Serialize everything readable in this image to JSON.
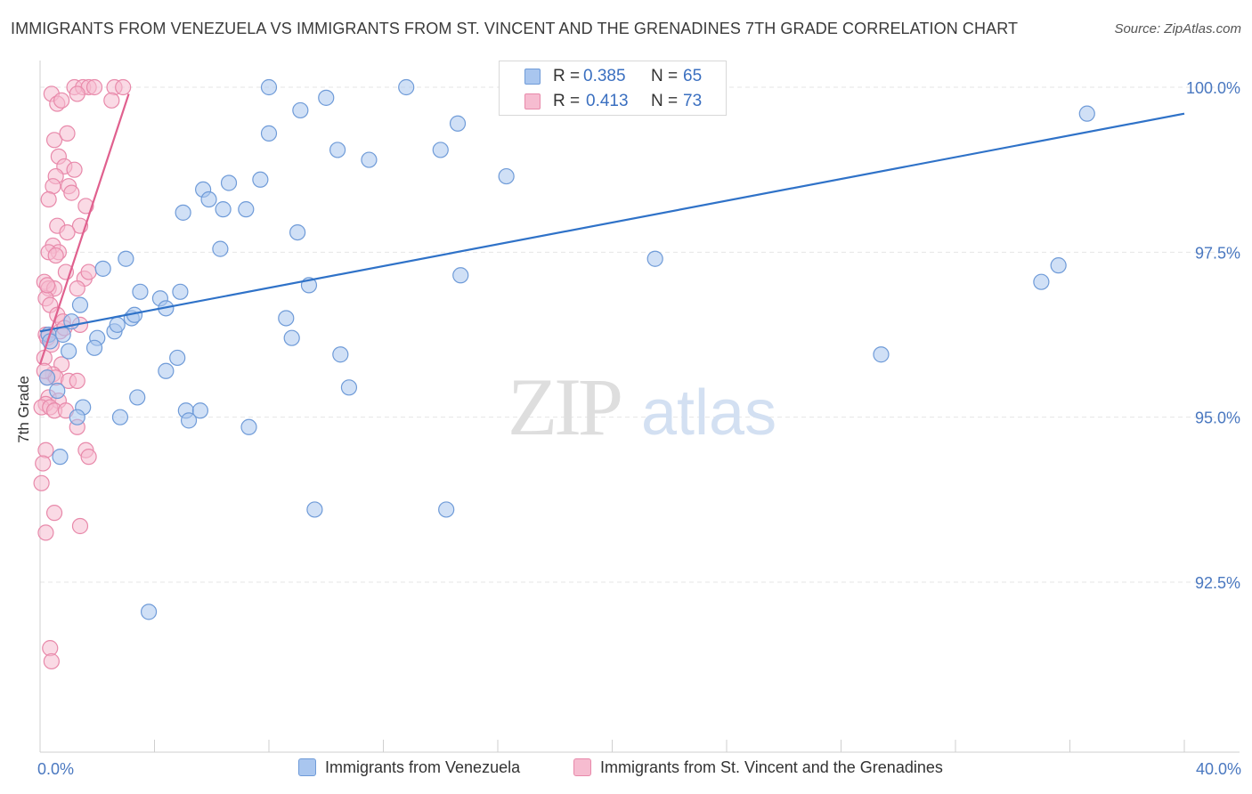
{
  "chart_data": {
    "type": "scatter",
    "title": "IMMIGRANTS FROM VENEZUELA VS IMMIGRANTS FROM ST. VINCENT AND THE GRENADINES 7TH GRADE CORRELATION CHART",
    "source": "Source: ZipAtlas.com",
    "xlabel": "",
    "ylabel": "7th Grade",
    "xlim": [
      0,
      40
    ],
    "ylim": [
      90.2,
      100.5
    ],
    "x_tick_labels": [
      "0.0%",
      "40.0%"
    ],
    "y_ticks": [
      92.5,
      95.0,
      97.5,
      100.0
    ],
    "y_tick_labels": [
      "92.5%",
      "95.0%",
      "97.5%",
      "100.0%"
    ],
    "watermark": {
      "zip": "ZIP",
      "atlas": "atlas"
    },
    "legend": {
      "r_label": "R =",
      "n_label": "N =",
      "entries": [
        {
          "name": "Immigrants from Venezuela",
          "r": "0.385",
          "n": "65"
        },
        {
          "name": "Immigrants from St. Vincent and the Grenadines",
          "r": "0.413",
          "n": "73"
        }
      ]
    },
    "colors": {
      "blue_fill": "#a9c6ef",
      "blue_stroke": "#6f9bd8",
      "blue_line": "#2f72c8",
      "pink_fill": "#f6bcd0",
      "pink_stroke": "#e889aa",
      "pink_line": "#e0608e",
      "grid": "#e6e6e6"
    },
    "series": [
      {
        "name": "Immigrants from Venezuela",
        "trend": [
          [
            0,
            96.3
          ],
          [
            40,
            99.6
          ]
        ],
        "points": [
          [
            8.0,
            100.0
          ],
          [
            12.8,
            100.0
          ],
          [
            17.1,
            100.0
          ],
          [
            9.1,
            99.65
          ],
          [
            8.0,
            99.3
          ],
          [
            10.0,
            99.84
          ],
          [
            14.6,
            99.45
          ],
          [
            10.4,
            99.05
          ],
          [
            11.5,
            98.9
          ],
          [
            14.0,
            99.05
          ],
          [
            16.3,
            98.65
          ],
          [
            36.6,
            99.6
          ],
          [
            5.7,
            98.45
          ],
          [
            5.0,
            98.1
          ],
          [
            5.9,
            98.3
          ],
          [
            6.6,
            98.55
          ],
          [
            7.7,
            98.6
          ],
          [
            6.4,
            98.15
          ],
          [
            7.2,
            98.15
          ],
          [
            9.0,
            97.8
          ],
          [
            6.3,
            97.55
          ],
          [
            3.0,
            97.4
          ],
          [
            2.2,
            97.25
          ],
          [
            9.4,
            97.0
          ],
          [
            3.5,
            96.9
          ],
          [
            4.2,
            96.8
          ],
          [
            4.9,
            96.9
          ],
          [
            4.4,
            96.65
          ],
          [
            1.4,
            96.7
          ],
          [
            3.2,
            96.5
          ],
          [
            1.1,
            96.45
          ],
          [
            2.6,
            96.3
          ],
          [
            2.0,
            96.2
          ],
          [
            1.9,
            96.05
          ],
          [
            0.3,
            96.25
          ],
          [
            0.8,
            96.25
          ],
          [
            8.6,
            96.5
          ],
          [
            8.8,
            96.2
          ],
          [
            10.5,
            95.95
          ],
          [
            21.5,
            97.4
          ],
          [
            14.7,
            97.15
          ],
          [
            35.6,
            97.3
          ],
          [
            35.0,
            97.05
          ],
          [
            29.4,
            95.95
          ],
          [
            4.8,
            95.9
          ],
          [
            4.4,
            95.7
          ],
          [
            3.4,
            95.3
          ],
          [
            1.5,
            95.15
          ],
          [
            0.6,
            95.4
          ],
          [
            0.25,
            95.6
          ],
          [
            1.3,
            95.0
          ],
          [
            2.8,
            95.0
          ],
          [
            5.1,
            95.1
          ],
          [
            5.6,
            95.1
          ],
          [
            5.2,
            94.95
          ],
          [
            7.3,
            94.85
          ],
          [
            10.8,
            95.45
          ],
          [
            0.7,
            94.4
          ],
          [
            9.6,
            93.6
          ],
          [
            14.2,
            93.6
          ],
          [
            3.8,
            92.05
          ],
          [
            0.35,
            96.15
          ],
          [
            1.0,
            96.0
          ],
          [
            3.3,
            96.55
          ],
          [
            2.7,
            96.4
          ]
        ]
      },
      {
        "name": "Immigrants from St. Vincent and the Grenadines",
        "trend": [
          [
            0,
            95.8
          ],
          [
            3.1,
            99.9
          ]
        ],
        "points": [
          [
            1.2,
            100.0
          ],
          [
            1.5,
            100.0
          ],
          [
            1.7,
            100.0
          ],
          [
            1.3,
            99.9
          ],
          [
            1.9,
            100.0
          ],
          [
            2.6,
            100.0
          ],
          [
            2.5,
            99.8
          ],
          [
            2.9,
            100.0
          ],
          [
            0.4,
            99.9
          ],
          [
            0.6,
            99.75
          ],
          [
            0.75,
            99.8
          ],
          [
            0.5,
            99.2
          ],
          [
            0.95,
            99.3
          ],
          [
            0.65,
            98.95
          ],
          [
            0.85,
            98.8
          ],
          [
            1.2,
            98.75
          ],
          [
            0.55,
            98.65
          ],
          [
            0.45,
            98.5
          ],
          [
            1.0,
            98.5
          ],
          [
            1.1,
            98.4
          ],
          [
            0.3,
            98.3
          ],
          [
            1.6,
            98.2
          ],
          [
            0.6,
            97.9
          ],
          [
            1.4,
            97.9
          ],
          [
            0.95,
            97.8
          ],
          [
            0.45,
            97.6
          ],
          [
            0.65,
            97.5
          ],
          [
            0.3,
            97.5
          ],
          [
            0.55,
            97.45
          ],
          [
            0.9,
            97.2
          ],
          [
            1.55,
            97.1
          ],
          [
            1.7,
            97.2
          ],
          [
            0.15,
            97.05
          ],
          [
            0.3,
            96.95
          ],
          [
            0.5,
            96.95
          ],
          [
            1.3,
            96.95
          ],
          [
            0.2,
            96.8
          ],
          [
            0.35,
            96.7
          ],
          [
            0.6,
            96.55
          ],
          [
            0.8,
            96.45
          ],
          [
            1.4,
            96.4
          ],
          [
            0.7,
            96.3
          ],
          [
            0.2,
            96.25
          ],
          [
            0.25,
            96.2
          ],
          [
            0.15,
            95.9
          ],
          [
            0.75,
            95.8
          ],
          [
            0.45,
            95.65
          ],
          [
            0.25,
            95.6
          ],
          [
            0.55,
            95.6
          ],
          [
            1.0,
            95.55
          ],
          [
            1.3,
            95.55
          ],
          [
            0.3,
            95.3
          ],
          [
            0.65,
            95.25
          ],
          [
            0.2,
            95.2
          ],
          [
            0.05,
            95.15
          ],
          [
            0.35,
            95.15
          ],
          [
            0.5,
            95.1
          ],
          [
            0.9,
            95.1
          ],
          [
            1.3,
            94.85
          ],
          [
            0.2,
            94.5
          ],
          [
            1.6,
            94.5
          ],
          [
            1.7,
            94.4
          ],
          [
            0.1,
            94.3
          ],
          [
            0.05,
            94.0
          ],
          [
            0.5,
            93.55
          ],
          [
            0.2,
            93.25
          ],
          [
            1.4,
            93.35
          ],
          [
            0.35,
            91.5
          ],
          [
            0.4,
            91.3
          ],
          [
            0.15,
            95.7
          ],
          [
            0.4,
            96.1
          ],
          [
            0.25,
            97.0
          ],
          [
            0.85,
            96.35
          ]
        ]
      }
    ]
  }
}
